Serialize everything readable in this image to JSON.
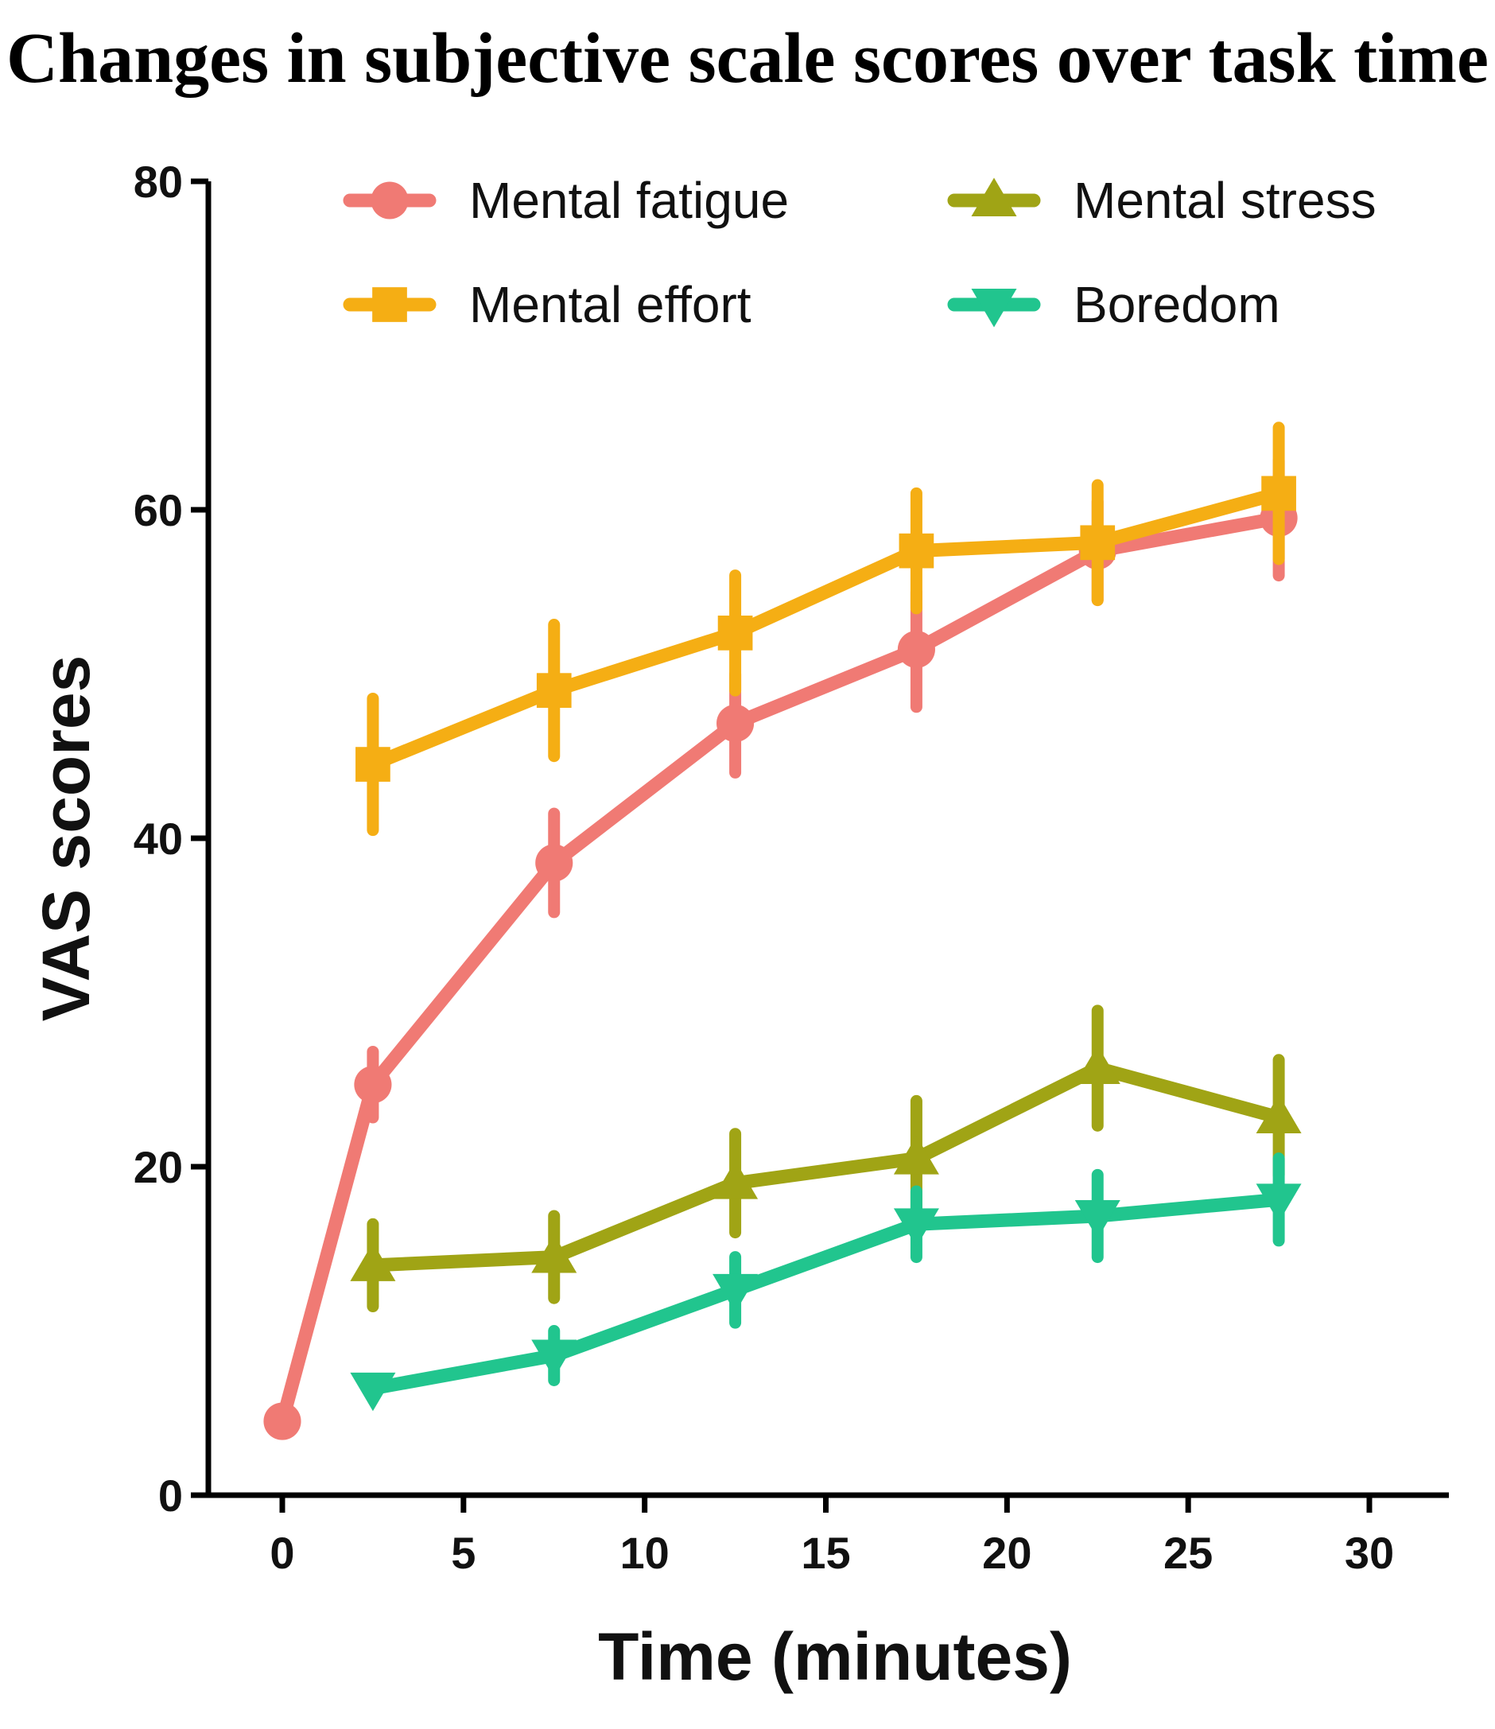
{
  "chart_data": {
    "type": "line",
    "title": "Changes in subjective scale scores over task time",
    "xlabel": "Time (minutes)",
    "ylabel": "VAS scores",
    "xlim": [
      -2,
      32
    ],
    "ylim": [
      0,
      80
    ],
    "xticks": [
      0,
      5,
      10,
      15,
      20,
      25,
      30
    ],
    "yticks": [
      0,
      20,
      40,
      60,
      80
    ],
    "legend_position": "top",
    "series": [
      {
        "name": "Mental fatigue",
        "color": "#f07a74",
        "marker": "circle",
        "x": [
          0,
          2.5,
          7.5,
          12.5,
          17.5,
          22.5,
          27.5
        ],
        "y": [
          4.5,
          25,
          38.5,
          47,
          51.5,
          57.5,
          59.5
        ],
        "err": [
          0,
          2,
          3,
          3,
          3.5,
          3,
          3.5
        ]
      },
      {
        "name": "Mental effort",
        "color": "#f5ae14",
        "marker": "square",
        "x": [
          2.5,
          7.5,
          12.5,
          17.5,
          22.5,
          27.5
        ],
        "y": [
          44.5,
          49,
          52.5,
          57.5,
          58,
          61
        ],
        "err": [
          4,
          4,
          3.5,
          3.5,
          3.5,
          4
        ]
      },
      {
        "name": "Mental stress",
        "color": "#a0a415",
        "marker": "triangle-up",
        "x": [
          2.5,
          7.5,
          12.5,
          17.5,
          22.5,
          27.5
        ],
        "y": [
          14,
          14.5,
          19,
          20.5,
          26,
          23
        ],
        "err": [
          2.5,
          2.5,
          3,
          3.5,
          3.5,
          3.5
        ]
      },
      {
        "name": "Boredom",
        "color": "#21c58e",
        "marker": "triangle-down",
        "x": [
          2.5,
          7.5,
          12.5,
          17.5,
          22.5,
          27.5
        ],
        "y": [
          6.5,
          8.5,
          12.5,
          16.5,
          17,
          18
        ],
        "err": [
          0,
          1.5,
          2,
          2,
          2.5,
          2.5
        ]
      }
    ]
  }
}
